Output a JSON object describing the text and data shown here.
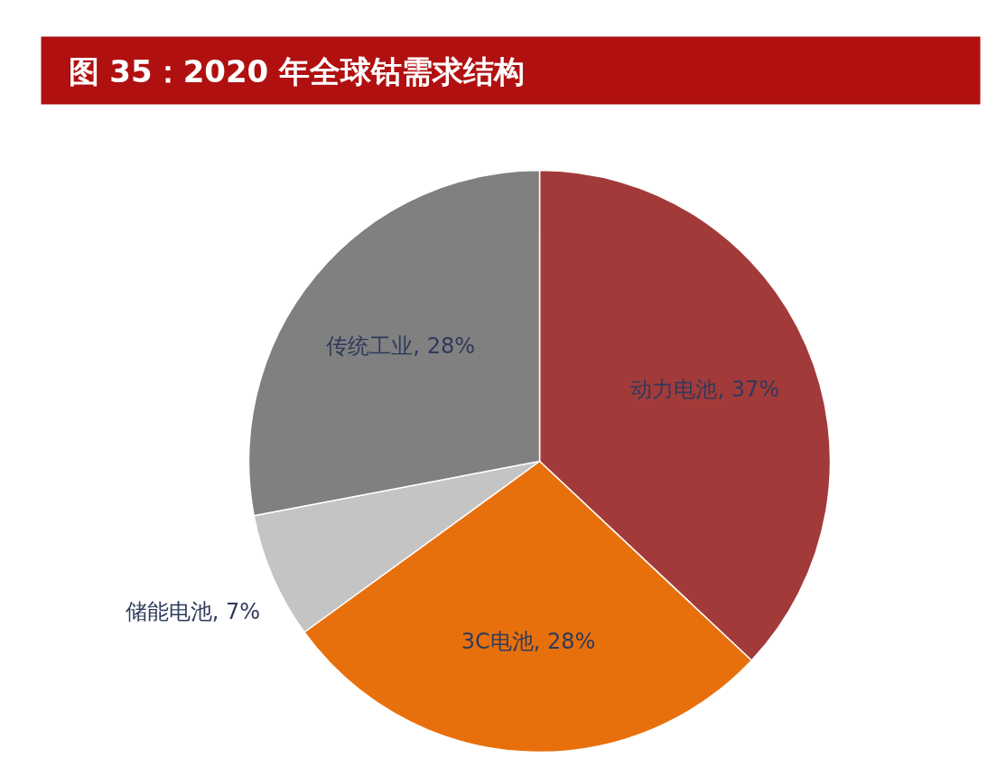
{
  "chart_data": {
    "type": "pie",
    "title": "图 35：2020 年全球钴需求结构",
    "categories": [
      "动力电池",
      "3C电池",
      "储能电池",
      "传统工业"
    ],
    "values": [
      37,
      28,
      7,
      28
    ],
    "value_labels": [
      "37%",
      "28%",
      "7%",
      "28%"
    ],
    "colors": [
      "#a33a3a",
      "#e8700c",
      "#c4c4c4",
      "#808080"
    ]
  }
}
